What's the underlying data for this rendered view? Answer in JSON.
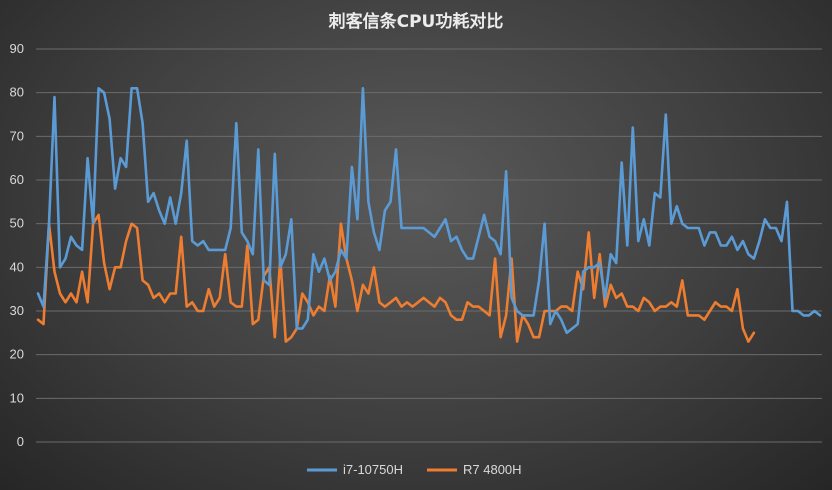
{
  "chart_data": {
    "type": "line",
    "title": "刺客信条CPU功耗对比",
    "xlabel": "",
    "ylabel": "",
    "ylim": [
      0,
      90
    ],
    "yticks": [
      0,
      10,
      20,
      30,
      40,
      50,
      60,
      70,
      80,
      90
    ],
    "grid": true,
    "legend": "bottom-center",
    "series": [
      {
        "name": "i7-10750H",
        "color": "#5b9bd5",
        "values": [
          34,
          31,
          50,
          79,
          40,
          42,
          47,
          45,
          44,
          65,
          50,
          81,
          80,
          74,
          58,
          65,
          63,
          81,
          81,
          73,
          55,
          57,
          53,
          50,
          56,
          50,
          57,
          69,
          46,
          45,
          46,
          44,
          44,
          44,
          44,
          49,
          73,
          48,
          46,
          43,
          67,
          37,
          36,
          66,
          40,
          43,
          51,
          26,
          26,
          28,
          43,
          39,
          42,
          37,
          39,
          44,
          42,
          63,
          51,
          81,
          55,
          48,
          44,
          53,
          55,
          67,
          49,
          49,
          49,
          49,
          49,
          48,
          47,
          49,
          51,
          46,
          47,
          44,
          42,
          42,
          47,
          52,
          47,
          46,
          43,
          62,
          33,
          30,
          29,
          29,
          29,
          37,
          50,
          27,
          30,
          28,
          25,
          26,
          27,
          39,
          40,
          40,
          41,
          33,
          43,
          41,
          64,
          45,
          72,
          46,
          51,
          45,
          57,
          56,
          75,
          50,
          54,
          50,
          49,
          49,
          49,
          45,
          48,
          48,
          45,
          45,
          47,
          44,
          46,
          43,
          42,
          46,
          51,
          49,
          49,
          46,
          55,
          30,
          30,
          29,
          29,
          30,
          29
        ],
        "x": [
          0,
          1,
          2,
          3,
          4,
          5,
          6,
          7,
          8,
          9,
          10,
          11,
          12,
          13,
          14,
          15,
          16,
          17,
          18,
          19,
          20,
          21,
          22,
          23,
          24,
          25,
          26,
          27,
          28,
          29,
          30,
          31,
          32,
          33,
          34,
          35,
          36,
          37,
          38,
          39,
          40,
          41,
          42,
          43,
          44,
          45,
          46,
          47,
          48,
          49,
          50,
          51,
          52,
          53,
          54,
          55,
          56,
          57,
          58,
          59,
          60,
          61,
          62,
          63,
          64,
          65,
          66,
          67,
          68,
          69,
          70,
          71,
          72,
          73,
          74,
          75,
          76,
          77,
          78,
          79,
          80,
          81,
          82,
          83,
          84,
          85,
          86,
          87,
          88,
          89,
          90,
          91,
          92,
          93,
          94,
          95,
          96,
          97,
          98,
          99,
          100,
          101,
          102,
          103,
          104,
          105,
          106,
          107,
          108,
          109,
          110,
          111,
          112,
          113,
          114,
          115,
          116,
          117,
          118,
          119,
          120,
          121,
          122,
          123,
          124,
          125,
          126,
          127,
          128,
          129,
          130,
          131,
          132,
          133,
          134,
          135,
          136,
          137,
          138,
          139,
          140,
          141,
          142
        ]
      },
      {
        "name": "R7 4800H",
        "color": "#ed7d31",
        "values": [
          28,
          27,
          50,
          39,
          34,
          32,
          34,
          32,
          39,
          32,
          50,
          52,
          41,
          35,
          40,
          40,
          46,
          50,
          49,
          37,
          36,
          33,
          34,
          32,
          34,
          34,
          47,
          31,
          32,
          30,
          30,
          35,
          31,
          33,
          43,
          32,
          31,
          31,
          45,
          27,
          28,
          38,
          40,
          24,
          42,
          23,
          24,
          26,
          34,
          32,
          29,
          31,
          30,
          38,
          31,
          50,
          42,
          37,
          30,
          36,
          34,
          40,
          32,
          31,
          32,
          33,
          31,
          32,
          31,
          32,
          33,
          32,
          31,
          33,
          32,
          29,
          28,
          28,
          32,
          31,
          31,
          30,
          29,
          42,
          24,
          29,
          42,
          23,
          29,
          27,
          24,
          24,
          30,
          30,
          30,
          31,
          31,
          30,
          39,
          35,
          48,
          33,
          43,
          31,
          36,
          33,
          34,
          31,
          31,
          30,
          33,
          32,
          30,
          31,
          31,
          32,
          31,
          37,
          29,
          29,
          29,
          28,
          30,
          32,
          31,
          31,
          30,
          35,
          26,
          23,
          25
        ],
        "x": [
          0,
          1,
          2,
          3,
          4,
          5,
          6,
          7,
          8,
          9,
          10,
          11,
          12,
          13,
          14,
          15,
          16,
          17,
          18,
          19,
          20,
          21,
          22,
          23,
          24,
          25,
          26,
          27,
          28,
          29,
          30,
          31,
          32,
          33,
          34,
          35,
          36,
          37,
          38,
          39,
          40,
          41,
          42,
          43,
          44,
          45,
          46,
          47,
          48,
          49,
          50,
          51,
          52,
          53,
          54,
          55,
          56,
          57,
          58,
          59,
          60,
          61,
          62,
          63,
          64,
          65,
          66,
          67,
          68,
          69,
          70,
          71,
          72,
          73,
          74,
          75,
          76,
          77,
          78,
          79,
          80,
          81,
          82,
          83,
          84,
          85,
          86,
          87,
          88,
          89,
          90,
          91,
          92,
          93,
          94,
          95,
          96,
          97,
          98,
          99,
          100,
          101,
          102,
          103,
          104,
          105,
          106,
          107,
          108,
          109,
          110,
          111,
          112,
          113,
          114,
          115,
          116,
          117,
          118,
          119,
          120,
          121,
          122,
          123,
          124,
          125,
          126,
          127,
          128,
          129,
          130
        ]
      }
    ]
  }
}
